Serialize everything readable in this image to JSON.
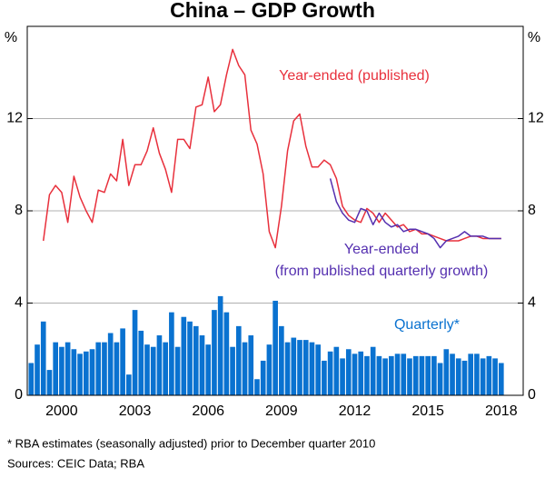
{
  "chart_data": {
    "type": "bar_line",
    "title": "China – GDP Growth",
    "y_unit": "%",
    "x": [
      1998.75,
      1999,
      1999.25,
      1999.5,
      1999.75,
      2000,
      2000.25,
      2000.5,
      2000.75,
      2001,
      2001.25,
      2001.5,
      2001.75,
      2002,
      2002.25,
      2002.5,
      2002.75,
      2003,
      2003.25,
      2003.5,
      2003.75,
      2004,
      2004.25,
      2004.5,
      2004.75,
      2005,
      2005.25,
      2005.5,
      2005.75,
      2006,
      2006.25,
      2006.5,
      2006.75,
      2007,
      2007.25,
      2007.5,
      2007.75,
      2008,
      2008.25,
      2008.5,
      2008.75,
      2009,
      2009.25,
      2009.5,
      2009.75,
      2010,
      2010.25,
      2010.5,
      2010.75,
      2011,
      2011.25,
      2011.5,
      2011.75,
      2012,
      2012.25,
      2012.5,
      2012.75,
      2013,
      2013.25,
      2013.5,
      2013.75,
      2014,
      2014.25,
      2014.5,
      2014.75,
      2015,
      2015.25,
      2015.5,
      2015.75,
      2016,
      2016.25,
      2016.5,
      2016.75,
      2017,
      2017.25,
      2017.5,
      2017.75,
      2018
    ],
    "series": [
      {
        "name": "Quarterly*",
        "kind": "bar",
        "color": "#0a72d0",
        "axis": "y",
        "values": [
          1.4,
          2.2,
          3.2,
          1.1,
          2.3,
          2.1,
          2.3,
          2.0,
          1.8,
          1.9,
          2.0,
          2.3,
          2.3,
          2.7,
          2.3,
          2.9,
          0.9,
          3.7,
          2.8,
          2.2,
          2.1,
          2.6,
          2.3,
          3.6,
          2.1,
          3.4,
          3.2,
          3.0,
          2.6,
          2.2,
          3.7,
          4.3,
          3.6,
          2.1,
          3.0,
          2.3,
          2.6,
          0.7,
          1.5,
          2.2,
          4.1,
          3.0,
          2.3,
          2.5,
          2.4,
          2.4,
          2.3,
          2.2,
          1.5,
          1.9,
          2.1,
          1.6,
          2.0,
          1.8,
          1.9,
          1.7,
          2.1,
          1.7,
          1.6,
          1.7,
          1.8,
          1.8,
          1.6,
          1.7,
          1.7,
          1.7,
          1.7,
          1.4,
          2.0,
          1.8,
          1.6,
          1.5,
          1.8,
          1.8,
          1.6,
          1.7,
          1.6,
          1.4
        ]
      },
      {
        "name": "Year-ended (published)",
        "kind": "line",
        "color": "#e8303c",
        "axis": "y",
        "values": [
          null,
          null,
          6.7,
          8.7,
          9.1,
          8.8,
          7.5,
          9.5,
          8.6,
          8.0,
          7.5,
          8.9,
          8.8,
          9.6,
          9.3,
          11.1,
          9.1,
          10.0,
          10.0,
          10.6,
          11.6,
          10.5,
          9.8,
          8.8,
          11.1,
          11.1,
          10.7,
          12.5,
          12.6,
          13.8,
          12.3,
          12.6,
          13.9,
          15.0,
          14.3,
          13.9,
          11.5,
          10.9,
          9.6,
          7.1,
          6.4,
          8.2,
          10.6,
          11.9,
          12.2,
          10.8,
          9.9,
          9.9,
          10.2,
          10.0,
          9.4,
          8.2,
          7.8,
          7.6,
          7.5,
          8.1,
          7.9,
          7.5,
          7.9,
          7.6,
          7.3,
          7.4,
          7.1,
          7.2,
          7.0,
          7.0,
          6.9,
          6.8,
          6.7,
          6.7,
          6.7,
          6.8,
          6.9,
          6.9,
          6.8,
          6.8,
          6.8,
          6.8
        ]
      },
      {
        "name": "Year-ended\n(from published quarterly growth)",
        "kind": "line",
        "color": "#5530b0",
        "axis": "y",
        "values": [
          null,
          null,
          null,
          null,
          null,
          null,
          null,
          null,
          null,
          null,
          null,
          null,
          null,
          null,
          null,
          null,
          null,
          null,
          null,
          null,
          null,
          null,
          null,
          null,
          null,
          null,
          null,
          null,
          null,
          null,
          null,
          null,
          null,
          null,
          null,
          null,
          null,
          null,
          null,
          null,
          null,
          null,
          null,
          null,
          null,
          null,
          null,
          null,
          null,
          9.4,
          8.4,
          7.9,
          7.6,
          7.5,
          8.1,
          8.0,
          7.4,
          7.9,
          7.5,
          7.3,
          7.4,
          7.1,
          7.2,
          7.2,
          7.1,
          7.0,
          6.8,
          6.4,
          6.7,
          6.8,
          6.9,
          7.1,
          6.9,
          6.9,
          6.9,
          6.8,
          6.8,
          6.8
        ]
      }
    ],
    "xlim": [
      1998.59,
      2018.9
    ],
    "xticks": [
      2000,
      2003,
      2006,
      2009,
      2012,
      2015,
      2018
    ],
    "ylim": [
      0,
      16
    ],
    "yticks": [
      0,
      4,
      8,
      12
    ],
    "y2lim": [
      0,
      16
    ],
    "y2ticks": [
      0,
      4,
      8,
      12
    ],
    "grid": true,
    "footnotes": [
      "*      RBA estimates (seasonally adjusted) prior to December quarter 2010",
      "Sources: CEIC Data; RBA"
    ]
  }
}
